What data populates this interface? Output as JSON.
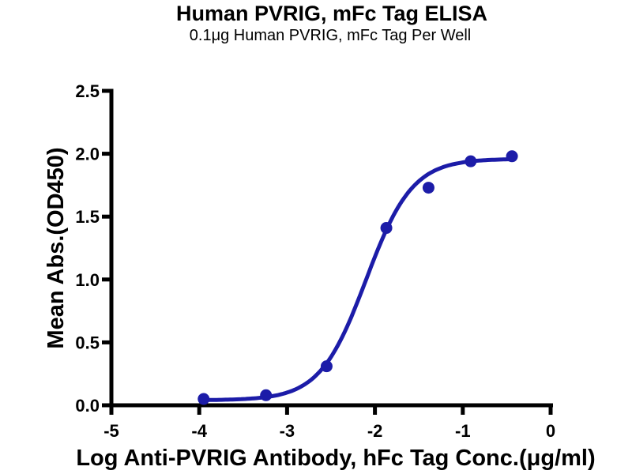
{
  "page": {
    "background": "#ffffff"
  },
  "chart": {
    "title": "Human PVRIG, mFc Tag ELISA",
    "subtitle": "0.1μg Human PVRIG, mFc Tag Per Well",
    "xlabel": "Log Anti-PVRIG Antibody, hFc Tag Conc.(μg/ml)",
    "ylabel": "Mean Abs.(OD450)"
  },
  "chart_data": {
    "type": "scatter",
    "title": "Human PVRIG, mFc Tag ELISA",
    "subtitle": "0.1μg Human PVRIG, mFc Tag Per Well",
    "xlabel": "Log Anti-PVRIG Antibody, hFc Tag Conc.(μg/ml)",
    "ylabel": "Mean Abs.(OD450)",
    "series": [
      {
        "name": "Anti-PVRIG Antibody, hFc Tag",
        "x": [
          -3.95,
          -3.24,
          -2.55,
          -1.87,
          -1.39,
          -0.91,
          -0.44
        ],
        "y": [
          0.05,
          0.08,
          0.31,
          1.41,
          1.73,
          1.94,
          1.98
        ],
        "marker": "circle",
        "color": "#1c1ca8"
      }
    ],
    "curve_fit": {
      "model": "4PL-sigmoid",
      "bottom": 0.04,
      "top": 1.96,
      "logEC50": -2.1,
      "hill": 1.65
    },
    "xlim": [
      -5,
      0
    ],
    "ylim": [
      0,
      2.5
    ],
    "xticks": [
      -5,
      -4,
      -3,
      -2,
      -1,
      0
    ],
    "xtick_labels": [
      "-5",
      "-4",
      "-3",
      "-2",
      "-1",
      "0"
    ],
    "yticks": [
      0,
      0.5,
      1,
      1.5,
      2,
      2.5
    ],
    "ytick_labels": [
      "0.0",
      "0.5",
      "1.0",
      "1.5",
      "2.0",
      "2.5"
    ],
    "grid": false,
    "legend": "none",
    "axis_color": "#000000",
    "text_color": "#000000"
  }
}
